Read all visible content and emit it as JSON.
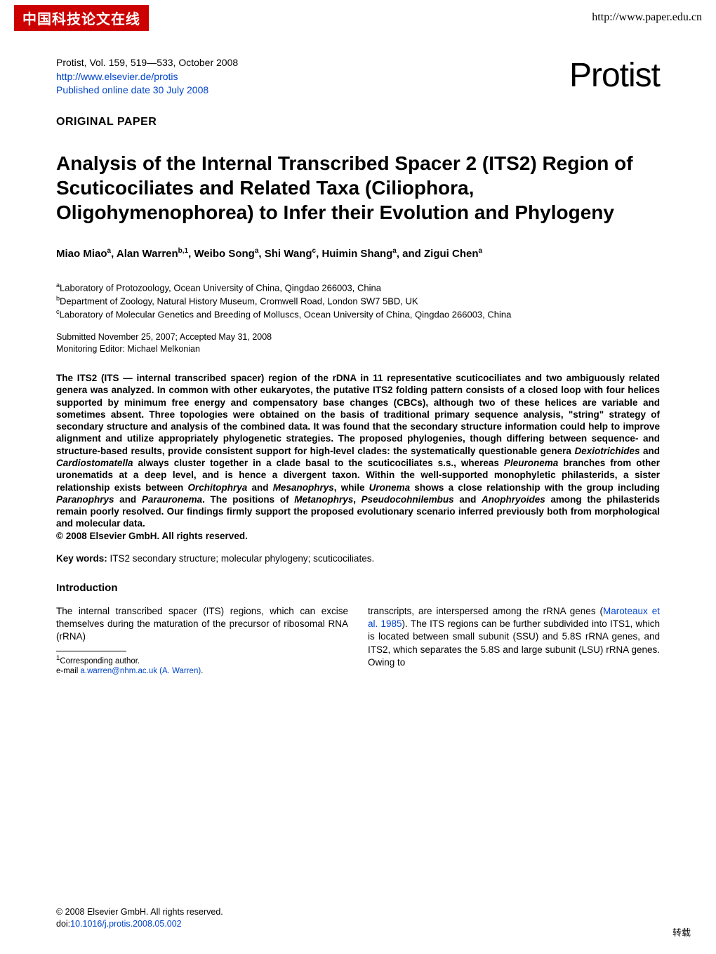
{
  "banner": {
    "logo_text": "中国科技论文在线",
    "url": "http://www.paper.edu.cn"
  },
  "meta": {
    "citation": "Protist, Vol. 159, 519—533, October 2008",
    "journal_url": "http://www.elsevier.de/protis",
    "pub_online": "Published online date 30 July 2008",
    "journal_name": "Protist"
  },
  "section_label": "ORIGINAL PAPER",
  "title": "Analysis of the Internal Transcribed Spacer 2 (ITS2) Region of Scuticociliates and Related Taxa (Ciliophora, Oligohymenophorea) to Infer their Evolution and Phylogeny",
  "authors": [
    {
      "name": "Miao Miao",
      "sup": "a"
    },
    {
      "name": "Alan Warren",
      "sup": "b,1"
    },
    {
      "name": "Weibo Song",
      "sup": "a"
    },
    {
      "name": "Shi Wang",
      "sup": "c"
    },
    {
      "name": "Huimin Shang",
      "sup": "a"
    },
    {
      "name": "Zigui Chen",
      "sup": "a"
    }
  ],
  "affiliations": [
    {
      "sup": "a",
      "text": "Laboratory of Protozoology, Ocean University of China, Qingdao 266003, China"
    },
    {
      "sup": "b",
      "text": "Department of Zoology, Natural History Museum, Cromwell Road, London SW7 5BD, UK"
    },
    {
      "sup": "c",
      "text": "Laboratory of Molecular Genetics and Breeding of Molluscs, Ocean University of China, Qingdao 266003, China"
    }
  ],
  "submitted": {
    "line1": "Submitted November 25, 2007; Accepted May 31, 2008",
    "line2": "Monitoring Editor: Michael Melkonian"
  },
  "abstract": {
    "text_before": "The ITS2 (ITS — internal transcribed spacer) region of the rDNA in 11 representative scuticociliates and two ambiguously related genera was analyzed. In common with other eukaryotes, the putative ITS2 folding pattern consists of a closed loop with four helices supported by minimum free energy and compensatory base changes (CBCs), although two of these helices are variable and sometimes absent. Three topologies were obtained on the basis of traditional primary sequence analysis, \"string\" strategy of secondary structure and analysis of the combined data. It was found that the secondary structure information could help to improve alignment and utilize appropriately phylogenetic strategies. The proposed phylogenies, though differing between sequence- and structure-based results, provide consistent support for high-level clades: the systematically questionable genera ",
    "genus1": "Dexiotrichides",
    "text_and1": " and ",
    "genus2": "Cardiostomatella",
    "text_mid1": " always cluster together in a clade basal to the scuticociliates s.s., whereas ",
    "genus3": "Pleuronema",
    "text_mid2": " branches from other uronematids at a deep level, and is hence a divergent taxon. Within the well-supported monophyletic philasterids, a sister relationship exists between ",
    "genus4": "Orchitophrya",
    "text_and2": " and ",
    "genus5": "Mesanophrys",
    "text_mid3": ", while ",
    "genus6": "Uronema",
    "text_mid4": " shows a close relationship with the group including ",
    "genus7": "Paranophrys",
    "text_and3": " and ",
    "genus8": "Parauronema",
    "text_mid5": ". The positions of ",
    "genus9": "Metanophrys",
    "text_comma": ", ",
    "genus10": "Pseudocohnilembus",
    "text_and4": " and ",
    "genus11": "Anophryoides",
    "text_end": " among the philasterids remain poorly resolved. Our findings firmly support the proposed evolutionary scenario inferred previously both from morphological and molecular data.",
    "copyright": "© 2008 Elsevier GmbH. All rights reserved."
  },
  "keywords": {
    "label": "Key words:",
    "text": " ITS2 secondary structure; molecular phylogeny; scuticociliates."
  },
  "intro": {
    "heading": "Introduction",
    "col1": "The internal transcribed spacer (ITS) regions, which can excise themselves during the maturation of the precursor of ribosomal RNA (rRNA)",
    "footnote_sup": "1",
    "footnote_line1": "Corresponding author.",
    "footnote_line2_pre": "e-mail ",
    "footnote_email": "a.warren@nhm.ac.uk (A. Warren)",
    "footnote_line2_post": ".",
    "col2_pre": "transcripts, are interspersed among the rRNA genes (",
    "col2_cite": "Maroteaux et al. 1985",
    "col2_post": "). The ITS regions can be further subdivided into ITS1, which is located between small subunit (SSU) and 5.8S rRNA genes, and ITS2, which separates the 5.8S and large subunit (LSU) rRNA genes. Owing to"
  },
  "footer": {
    "copyright": "© 2008 Elsevier GmbH. All rights reserved.",
    "doi_pre": "doi:",
    "doi": "10.1016/j.protis.2008.05.002",
    "reprint": "转载"
  },
  "colors": {
    "link": "#0044cc",
    "banner_bg": "#cc0000",
    "text": "#000000",
    "background": "#ffffff"
  },
  "fonts": {
    "body_size_pt": 10,
    "title_size_pt": 21,
    "journal_size_pt": 36
  }
}
